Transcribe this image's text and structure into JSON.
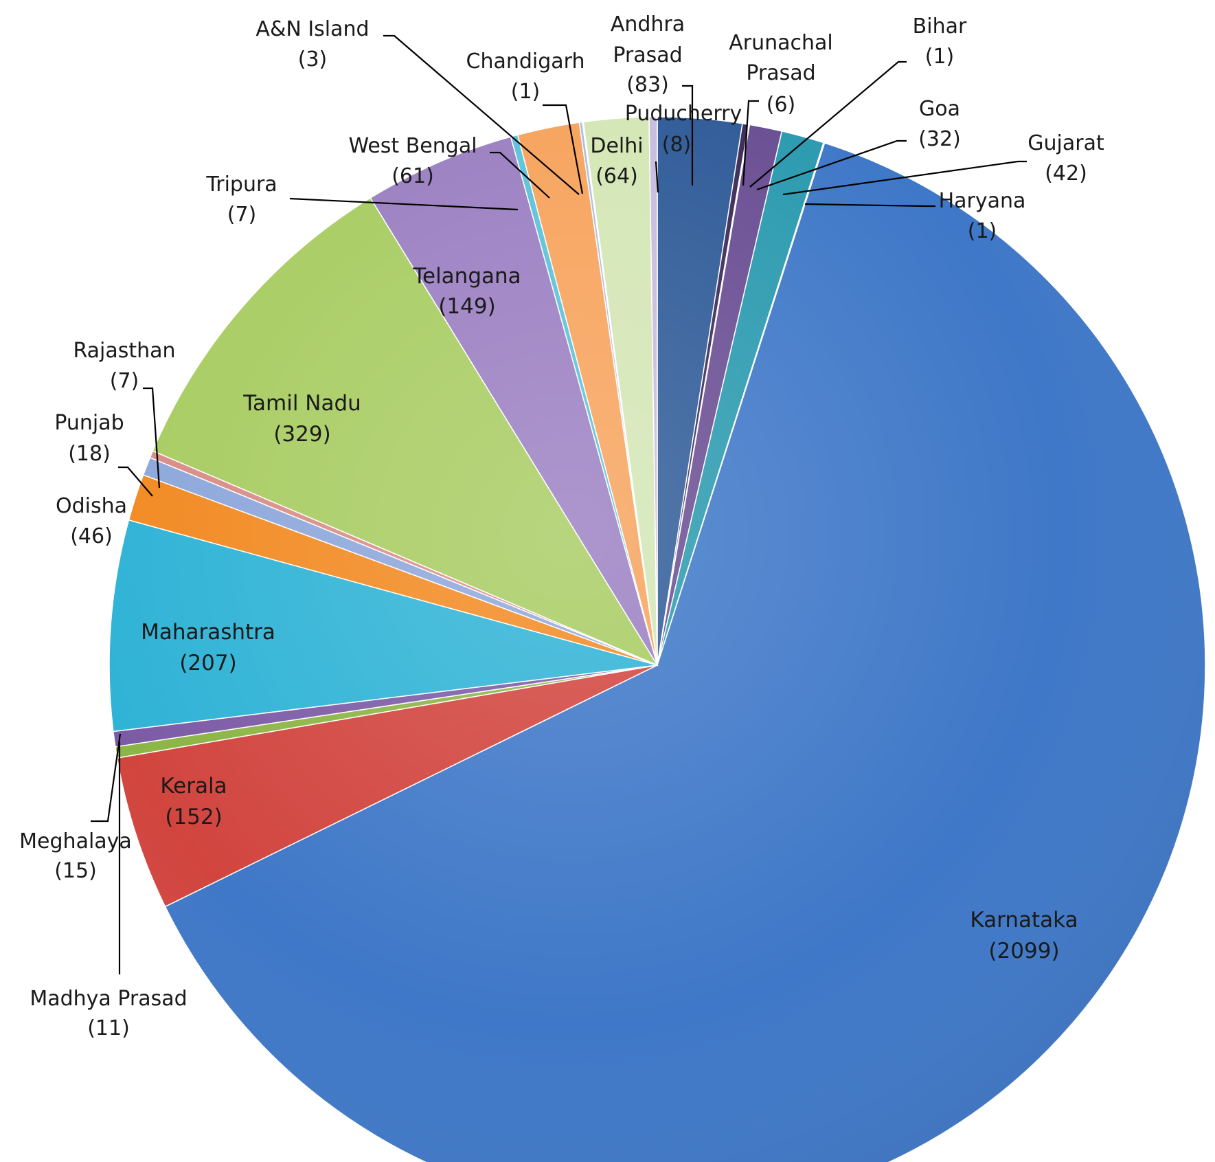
{
  "chart_data": {
    "type": "pie",
    "start": "12 o'clock",
    "direction": "clockwise",
    "legend": "none",
    "slices": [
      {
        "label": "Andhra Prasad",
        "value": 83,
        "value_text": "(83)",
        "color": "#2F5B98"
      },
      {
        "label": "Arunachal Prasad",
        "value": 6,
        "value_text": "(6)",
        "color": "#3D2B57"
      },
      {
        "label": "Bihar",
        "value": 1,
        "value_text": "(1)",
        "color": "#9C4944"
      },
      {
        "label": "Goa",
        "value": 32,
        "value_text": "(32)",
        "color": "#6A4E93"
      },
      {
        "label": "Gujarat",
        "value": 42,
        "value_text": "(42)",
        "color": "#2B9AAF"
      },
      {
        "label": "Haryana",
        "value": 1,
        "value_text": "(1)",
        "color": "#E07B2A"
      },
      {
        "label": "Karnataka",
        "value": 2099,
        "value_text": "(2099)",
        "color": "#3F78C8"
      },
      {
        "label": "Kerala",
        "value": 152,
        "value_text": "(152)",
        "color": "#D2453F"
      },
      {
        "label": "Madhya Prasad",
        "value": 11,
        "value_text": "(11)",
        "color": "#8BB544"
      },
      {
        "label": "Meghalaya",
        "value": 15,
        "value_text": "(15)",
        "color": "#7C5BA6"
      },
      {
        "label": "Maharashtra",
        "value": 207,
        "value_text": "(207)",
        "color": "#2FB3D6"
      },
      {
        "label": "Odisha",
        "value": 46,
        "value_text": "(46)",
        "color": "#F28A22"
      },
      {
        "label": "Punjab",
        "value": 18,
        "value_text": "(18)",
        "color": "#8DA7DB"
      },
      {
        "label": "Rajasthan",
        "value": 7,
        "value_text": "(7)",
        "color": "#D98C86"
      },
      {
        "label": "Tamil Nadu",
        "value": 329,
        "value_text": "(329)",
        "color": "#A8CC62"
      },
      {
        "label": "Telangana",
        "value": 149,
        "value_text": "(149)",
        "color": "#9B7FC2"
      },
      {
        "label": "Tripura",
        "value": 7,
        "value_text": "(7)",
        "color": "#5CC1D9"
      },
      {
        "label": "West Bengal",
        "value": 61,
        "value_text": "(61)",
        "color": "#F7A35C"
      },
      {
        "label": "A&N Island",
        "value": 3,
        "value_text": "(3)",
        "color": "#A9BCE0"
      },
      {
        "label": "Chandigarh",
        "value": 1,
        "value_text": "(1)",
        "color": "#E8A9A4"
      },
      {
        "label": "Delhi",
        "value": 64,
        "value_text": "(64)",
        "color": "#D4E6B5"
      },
      {
        "label": "Puducherry",
        "value": 8,
        "value_text": "(8)",
        "color": "#C7BCDD"
      }
    ]
  }
}
